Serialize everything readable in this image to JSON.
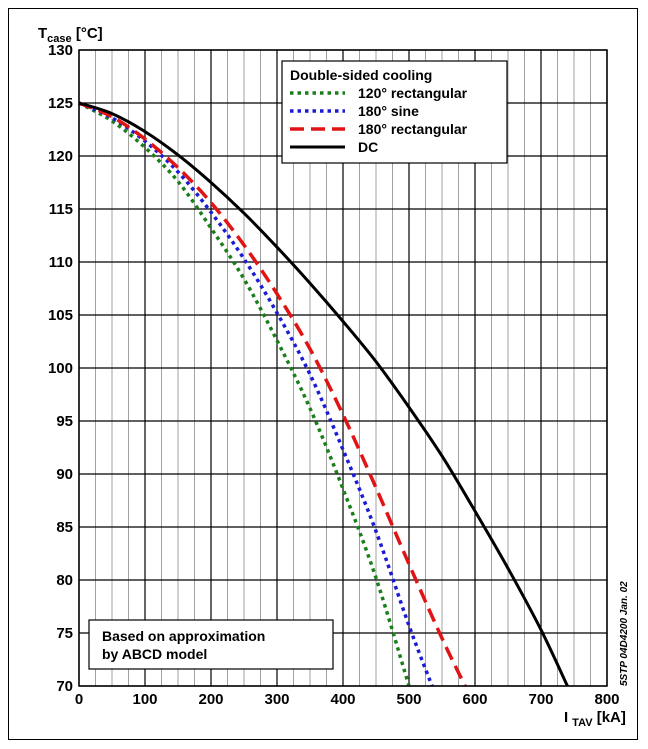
{
  "chart_data": {
    "type": "line",
    "ylabel_main": "T",
    "ylabel_sub": "case",
    "ylabel_unit": " [°C]",
    "xlabel_main": "I",
    "xlabel_sub": "TAV",
    "xlabel_unit": " [kA]",
    "xlim": [
      0,
      800
    ],
    "ylim": [
      70,
      130
    ],
    "x_major_ticks": [
      0,
      100,
      200,
      300,
      400,
      500,
      600,
      700,
      800
    ],
    "y_major_ticks": [
      70,
      75,
      80,
      85,
      90,
      95,
      100,
      105,
      110,
      115,
      120,
      125,
      130
    ],
    "x_minor_step": 25,
    "y_major_step": 5,
    "grid": true,
    "legend": {
      "title": "Double-sided cooling",
      "placement": "top-right"
    },
    "series": [
      {
        "name": "120° rectangular",
        "color": "#1a7f1a",
        "dash": "dotted",
        "x": [
          0,
          50,
          100,
          150,
          200,
          250,
          300,
          350,
          400,
          450,
          500
        ],
        "y": [
          125,
          123.3,
          120.8,
          117.6,
          113.2,
          108.4,
          102.6,
          96.2,
          88.6,
          80.2,
          70
        ]
      },
      {
        "name": "180° sine",
        "color": "#1b1bd6",
        "dash": "dotted",
        "x": [
          0,
          50,
          100,
          150,
          200,
          250,
          300,
          350,
          400,
          450,
          500,
          535
        ],
        "y": [
          125,
          123.6,
          121.4,
          118.5,
          114.7,
          110.3,
          105.2,
          99.4,
          92.3,
          84.6,
          75.7,
          70
        ]
      },
      {
        "name": "180° rectangular",
        "color": "#e01414",
        "dash": "dashed",
        "x": [
          0,
          50,
          100,
          150,
          200,
          250,
          300,
          350,
          400,
          450,
          500,
          550,
          585
        ],
        "y": [
          125,
          123.7,
          121.6,
          118.9,
          115.6,
          111.6,
          107.0,
          101.8,
          95.6,
          88.7,
          81.5,
          74.5,
          70
        ]
      },
      {
        "name": "DC",
        "color": "#000000",
        "dash": "solid",
        "x": [
          0,
          50,
          100,
          150,
          200,
          250,
          300,
          350,
          400,
          450,
          500,
          550,
          600,
          650,
          700,
          740
        ],
        "y": [
          125,
          124,
          122.3,
          120.1,
          117.5,
          114.6,
          111.4,
          108.0,
          104.4,
          100.6,
          96.3,
          91.7,
          86.5,
          81.1,
          75.3,
          70
        ]
      }
    ],
    "annotation_line1": "Based on approximation",
    "annotation_line2": "by ABCD model",
    "side_note": "5STP 04D4200 Jan. 02"
  }
}
